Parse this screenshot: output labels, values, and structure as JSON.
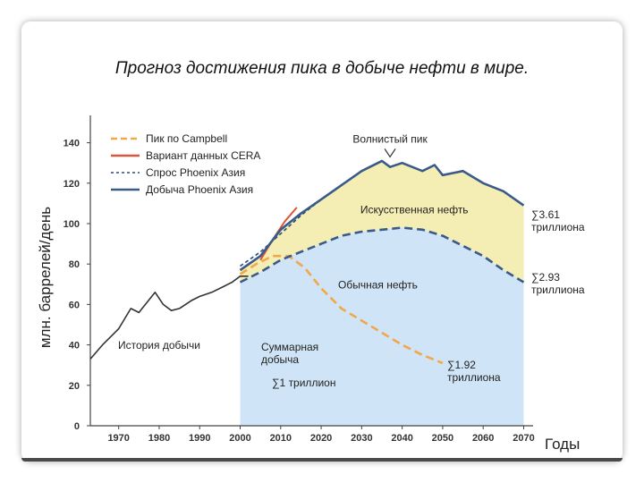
{
  "slide_title": "Прогноз достижения пика в добыче нефти в мире.",
  "chart_data": {
    "type": "area",
    "title": "",
    "xlabel": "Годы",
    "ylabel": "млн. баррелей/день",
    "xlim": [
      1963,
      2071
    ],
    "ylim": [
      0,
      150
    ],
    "x_ticks": [
      1970,
      1980,
      1990,
      2000,
      2010,
      2020,
      2030,
      2040,
      2050,
      2060,
      2070
    ],
    "y_ticks": [
      0,
      20,
      40,
      60,
      80,
      100,
      120,
      140
    ],
    "legend_position": "top-left",
    "series": [
      {
        "name": "Пик по Campbell",
        "style": "dashed",
        "color": "#f0a848",
        "x": [
          2000,
          2004,
          2008,
          2012,
          2016,
          2020,
          2025,
          2030,
          2035,
          2040,
          2045,
          2050
        ],
        "y": [
          75,
          80,
          84,
          84,
          78,
          68,
          58,
          52,
          46,
          40,
          35,
          31
        ]
      },
      {
        "name": "Вариант данных CERA",
        "style": "solid",
        "color": "#d9573a",
        "x": [
          2005,
          2008,
          2011,
          2014
        ],
        "y": [
          82,
          92,
          101,
          108
        ]
      },
      {
        "name": "Спрос Phoenix Азия",
        "style": "dotted",
        "color": "#2c4a7a",
        "x": [
          2000,
          2005,
          2010,
          2015,
          2020,
          2025,
          2030
        ],
        "y": [
          79,
          86,
          95,
          104,
          112,
          119,
          126
        ]
      },
      {
        "name": "Добыча Phoenix Азия",
        "style": "solid",
        "color": "#3a5a8a",
        "x": [
          2000,
          2005,
          2010,
          2015,
          2020,
          2025,
          2030,
          2035,
          2037,
          2040,
          2045,
          2048,
          2050,
          2055,
          2060,
          2065,
          2070
        ],
        "y": [
          77,
          84,
          97,
          105,
          112,
          119,
          126,
          131,
          128,
          130,
          126,
          129,
          124,
          126,
          120,
          116,
          109
        ]
      },
      {
        "name": "Обычная нефть",
        "style": "dashed",
        "color": "#3a5a8a",
        "x": [
          2000,
          2005,
          2010,
          2015,
          2020,
          2025,
          2030,
          2035,
          2040,
          2045,
          2050,
          2055,
          2060,
          2065,
          2070
        ],
        "y": [
          71,
          76,
          82,
          86,
          90,
          94,
          96,
          97,
          98,
          97,
          94,
          89,
          84,
          77,
          71
        ]
      },
      {
        "name": "История добычи",
        "style": "solid",
        "color": "#333333",
        "x": [
          1963,
          1966,
          1970,
          1973,
          1975,
          1979,
          1981,
          1983,
          1985,
          1988,
          1990,
          1993,
          1996,
          1998,
          2000,
          2002
        ],
        "y": [
          33,
          40,
          48,
          58,
          56,
          66,
          60,
          57,
          58,
          62,
          64,
          66,
          69,
          71,
          74,
          74
        ]
      }
    ],
    "annotations": [
      {
        "text": "Волнистый пик",
        "x": 2037,
        "y": 140
      },
      {
        "text": "Искусственная нефть",
        "x": 2043,
        "y": 105
      },
      {
        "text": "Обычная нефть",
        "x": 2034,
        "y": 68
      },
      {
        "text": "История добычи",
        "x": 1980,
        "y": 38
      },
      {
        "text": "Суммарная добыча",
        "x": 2012,
        "y": 36
      },
      {
        "text": "∑1 триллион",
        "x": 2012,
        "y": 21
      },
      {
        "text": "∑1.92 триллиона",
        "x": 2057,
        "y": 28
      },
      {
        "text": "∑2.93 триллиона",
        "x": 2075,
        "y": 72
      },
      {
        "text": "∑3.61 триллиона",
        "x": 2075,
        "y": 104
      }
    ],
    "regions": [
      {
        "name": "Искусственная нефть",
        "color": "#f5eeb4"
      },
      {
        "name": "Обычная нефть",
        "color": "#cfe4f6"
      }
    ]
  }
}
